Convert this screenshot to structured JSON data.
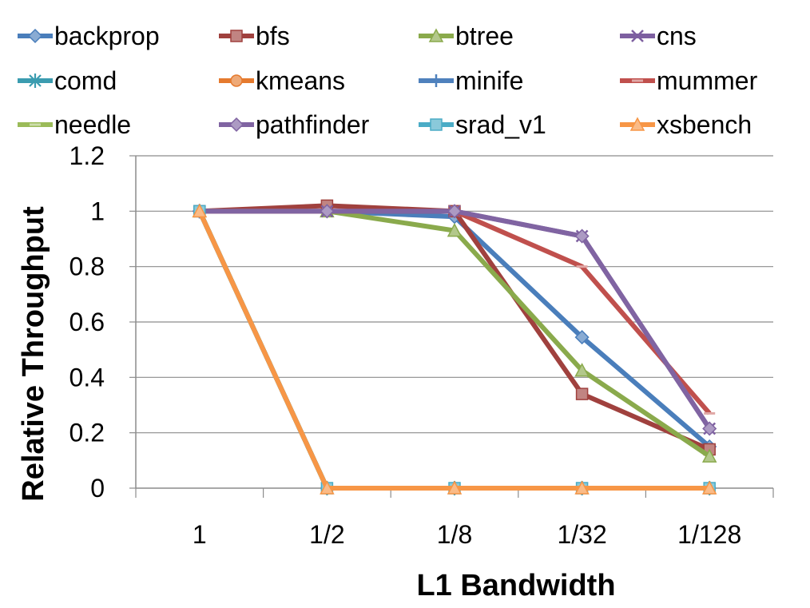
{
  "chart_data": {
    "type": "line",
    "title": "",
    "xlabel": "L1 Bandwidth",
    "ylabel": "Relative Throughput",
    "categories": [
      "1",
      "1/2",
      "1/8",
      "1/32",
      "1/128"
    ],
    "ylim": [
      0,
      1.2
    ],
    "yticks": [
      "0",
      "0.2",
      "0.4",
      "0.6",
      "0.8",
      "1",
      "1.2"
    ],
    "grid": true,
    "legend_position": "top",
    "series": [
      {
        "name": "backprop",
        "values": [
          1,
          1,
          0.98,
          0.545,
          0.15
        ],
        "color": "#4a7ebb",
        "marker": "diamond"
      },
      {
        "name": "bfs",
        "values": [
          1,
          1.02,
          1,
          0.34,
          0.14
        ],
        "color": "#a0413e",
        "marker": "square"
      },
      {
        "name": "btree",
        "values": [
          1,
          1,
          0.93,
          0.425,
          0.115
        ],
        "color": "#8aaa4c",
        "marker": "triangle"
      },
      {
        "name": "cns",
        "values": [
          1,
          1,
          1,
          0.91,
          0.215
        ],
        "color": "#7d5fa0",
        "marker": "x"
      },
      {
        "name": "comd",
        "values": [
          1,
          0,
          0,
          0,
          0
        ],
        "color": "#3b9cb0",
        "marker": "star"
      },
      {
        "name": "kmeans",
        "values": [
          1,
          0,
          0,
          0,
          0
        ],
        "color": "#e57a2e",
        "marker": "circle"
      },
      {
        "name": "minife",
        "values": [
          1,
          0,
          0,
          0,
          0
        ],
        "color": "#4f81bd",
        "marker": "plus"
      },
      {
        "name": "mummer",
        "values": [
          1,
          1,
          1,
          0.8,
          0.27
        ],
        "color": "#c0504d",
        "marker": "dash"
      },
      {
        "name": "needle",
        "values": [
          1,
          0,
          0,
          0,
          0
        ],
        "color": "#9bbb59",
        "marker": "dash"
      },
      {
        "name": "pathfinder",
        "values": [
          1,
          1,
          1,
          0.91,
          0.215
        ],
        "color": "#8064a2",
        "marker": "diamond"
      },
      {
        "name": "srad_v1",
        "values": [
          1,
          0,
          0,
          0,
          0
        ],
        "color": "#4bacc6",
        "marker": "square"
      },
      {
        "name": "xsbench",
        "values": [
          1,
          0,
          0,
          0,
          0
        ],
        "color": "#f79646",
        "marker": "triangle"
      }
    ]
  }
}
